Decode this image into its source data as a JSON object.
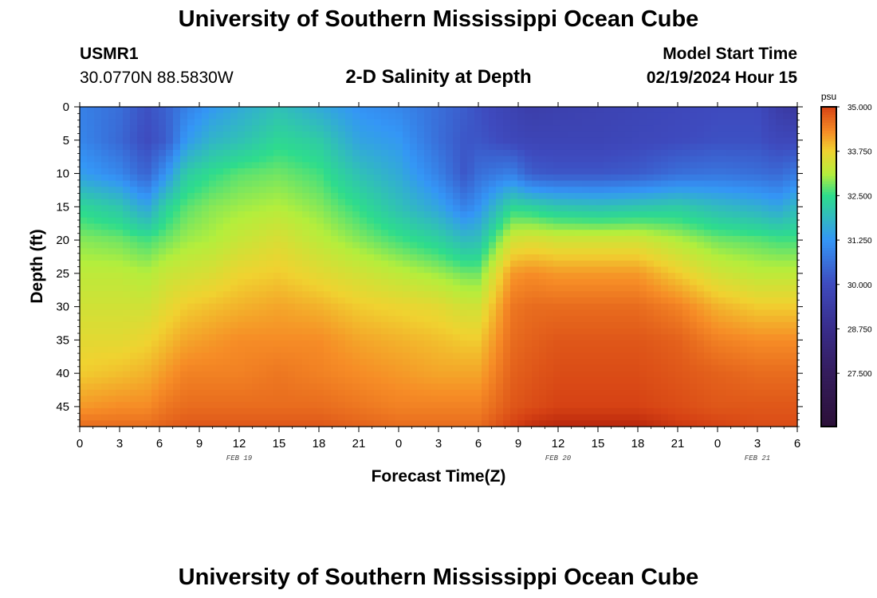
{
  "header": {
    "title": "University of Southern Mississippi Ocean Cube",
    "station_id": "USMR1",
    "coordinates": "30.0770N  88.5830W",
    "model_start_label": "Model Start Time",
    "model_start_value": "02/19/2024 Hour 15",
    "footer_title": "University of Southern Mississippi Ocean Cube"
  },
  "chart_data": {
    "type": "heatmap",
    "title": "2-D Salinity at Depth",
    "xlabel": "Forecast Time(Z)",
    "ylabel": "Depth (ft)",
    "x_ticks": [
      "0",
      "3",
      "6",
      "9",
      "12",
      "15",
      "18",
      "21",
      "0",
      "3",
      "6",
      "9",
      "12",
      "15",
      "18",
      "21",
      "0",
      "3",
      "6"
    ],
    "x_hours": [
      0,
      3,
      6,
      9,
      12,
      15,
      18,
      21,
      24,
      27,
      30,
      33,
      36,
      39,
      42,
      45,
      48,
      51,
      54
    ],
    "date_labels": [
      {
        "label": "FEB 19",
        "hour": 12
      },
      {
        "label": "FEB 20",
        "hour": 36
      },
      {
        "label": "FEB 21",
        "hour": 51
      }
    ],
    "y_ticks": [
      0,
      5,
      10,
      15,
      20,
      25,
      30,
      35,
      40,
      45
    ],
    "xlim": [
      0,
      54
    ],
    "ylim": [
      0,
      48
    ],
    "colorbar": {
      "unit": "psu",
      "ticks": [
        "35.000",
        "33.750",
        "32.500",
        "31.250",
        "30.000",
        "28.750",
        "27.500"
      ],
      "tick_values": [
        35.0,
        33.75,
        32.5,
        31.25,
        30.0,
        28.75,
        27.5
      ],
      "min": 26.0,
      "max": 35.0
    },
    "profile_time_hours": [
      0,
      3,
      5,
      6.5,
      8,
      10,
      12,
      15,
      18,
      21,
      24,
      27,
      29,
      30,
      32.5,
      34,
      36,
      39,
      42,
      45,
      48,
      51,
      52.5,
      54
    ],
    "profile_depths_ft": [
      0,
      5,
      10,
      15,
      20,
      25,
      30,
      35,
      40,
      45,
      48
    ],
    "salinity_psu": [
      [
        30.9,
        31.0,
        31.4,
        32.4,
        32.9,
        33.2,
        33.4,
        33.6,
        33.8,
        34.2,
        34.6
      ],
      [
        30.6,
        30.5,
        31.0,
        32.1,
        32.8,
        33.2,
        33.4,
        33.6,
        33.9,
        34.3,
        34.6
      ],
      [
        30.1,
        30.0,
        30.4,
        31.5,
        32.6,
        33.1,
        33.4,
        33.7,
        34.0,
        34.3,
        34.6
      ],
      [
        30.4,
        30.3,
        31.2,
        32.3,
        32.8,
        33.3,
        33.6,
        33.9,
        34.2,
        34.5,
        34.7
      ],
      [
        30.9,
        31.3,
        32.2,
        32.7,
        33.0,
        33.4,
        33.8,
        34.1,
        34.4,
        34.6,
        34.8
      ],
      [
        31.3,
        31.8,
        32.5,
        32.9,
        33.1,
        33.5,
        33.9,
        34.2,
        34.4,
        34.6,
        34.8
      ],
      [
        31.6,
        32.0,
        32.7,
        33.0,
        33.3,
        33.7,
        34.0,
        34.3,
        34.4,
        34.6,
        34.8
      ],
      [
        32.0,
        32.4,
        32.8,
        33.1,
        33.5,
        33.8,
        34.1,
        34.3,
        34.5,
        34.6,
        34.8
      ],
      [
        31.6,
        32.2,
        32.6,
        32.9,
        33.2,
        33.6,
        34.0,
        34.3,
        34.4,
        34.6,
        34.8
      ],
      [
        31.2,
        31.5,
        32.0,
        32.5,
        32.9,
        33.4,
        33.8,
        34.1,
        34.3,
        34.5,
        34.7
      ],
      [
        31.0,
        31.3,
        31.6,
        32.0,
        32.6,
        33.2,
        33.7,
        34.0,
        34.2,
        34.4,
        34.6
      ],
      [
        30.6,
        30.6,
        30.9,
        31.5,
        32.3,
        33.0,
        33.6,
        33.9,
        34.1,
        34.4,
        34.6
      ],
      [
        30.3,
        30.2,
        30.2,
        30.9,
        31.9,
        32.8,
        33.4,
        33.8,
        34.1,
        34.4,
        34.6
      ],
      [
        30.1,
        30.2,
        30.6,
        31.2,
        32.0,
        32.8,
        33.4,
        33.8,
        34.1,
        34.4,
        34.6
      ],
      [
        29.7,
        29.9,
        30.9,
        32.4,
        33.4,
        34.2,
        34.5,
        34.6,
        34.7,
        34.8,
        35.0
      ],
      [
        29.5,
        29.8,
        30.3,
        32.3,
        33.5,
        34.3,
        34.6,
        34.7,
        34.8,
        34.9,
        35.2
      ],
      [
        29.6,
        29.8,
        30.2,
        32.1,
        33.4,
        34.2,
        34.6,
        34.8,
        34.9,
        35.0,
        35.3
      ],
      [
        29.7,
        29.8,
        30.2,
        32.0,
        33.4,
        34.2,
        34.6,
        34.8,
        34.9,
        35.0,
        35.3
      ],
      [
        29.8,
        29.9,
        30.3,
        32.1,
        33.4,
        34.2,
        34.6,
        34.8,
        34.9,
        35.0,
        35.3
      ],
      [
        29.9,
        30.0,
        30.6,
        32.2,
        33.1,
        33.8,
        34.4,
        34.7,
        34.8,
        34.9,
        35.1
      ],
      [
        30.0,
        30.1,
        30.7,
        31.9,
        32.8,
        33.4,
        34.0,
        34.4,
        34.7,
        34.8,
        35.0
      ],
      [
        30.0,
        30.1,
        30.6,
        31.7,
        32.7,
        33.2,
        33.8,
        34.3,
        34.6,
        34.8,
        34.9
      ],
      [
        29.5,
        29.9,
        30.5,
        31.5,
        32.6,
        33.2,
        33.8,
        34.3,
        34.6,
        34.8,
        34.9
      ],
      [
        29.2,
        29.9,
        30.8,
        31.9,
        32.6,
        33.2,
        33.8,
        34.3,
        34.6,
        34.8,
        34.9
      ]
    ]
  }
}
